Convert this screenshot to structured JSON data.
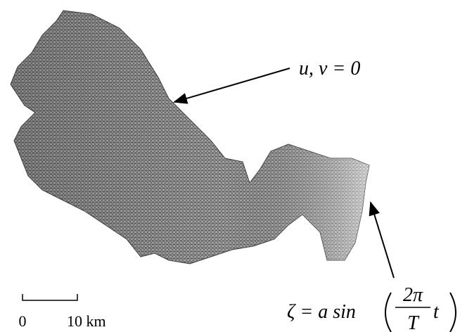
{
  "annotations": [
    {
      "text": "u, v = 0"
    },
    {
      "lhs": "ζ = a sin",
      "numerator": "2π",
      "denominator": "T",
      "variable": "t"
    }
  ],
  "scale_bar": {
    "start": "0",
    "end": "10 km"
  }
}
